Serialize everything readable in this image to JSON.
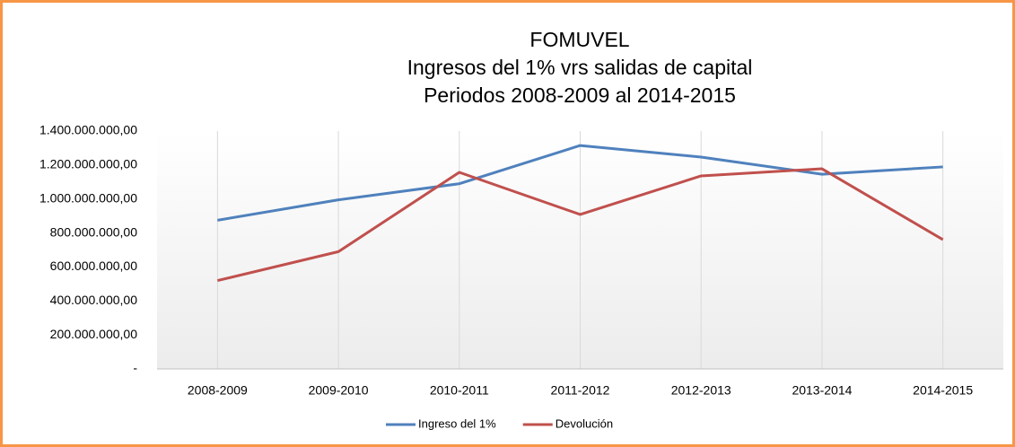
{
  "chart_data": {
    "type": "line",
    "title": [
      "FOMUVEL",
      "Ingresos del 1% vrs salidas de capital",
      "Periodos 2008-2009 al 2014-2015"
    ],
    "categories": [
      "2008-2009",
      "2009-2010",
      "2010-2011",
      "2011-2012",
      "2012-2013",
      "2013-2014",
      "2014-2015"
    ],
    "series": [
      {
        "name": "Ingreso del 1%",
        "color": "#4f81bd",
        "values": [
          875000000,
          995000000,
          1090000000,
          1315000000,
          1247000000,
          1146000000,
          1189000000
        ]
      },
      {
        "name": "Devolución",
        "color": "#c0504d",
        "values": [
          520000000,
          690000000,
          1157000000,
          909000000,
          1136000000,
          1178000000,
          761000000
        ]
      }
    ],
    "ylim": [
      0,
      1400000000
    ],
    "yticks": [
      {
        "value": 0,
        "label": "-"
      },
      {
        "value": 200000000,
        "label": "200.000.000,00"
      },
      {
        "value": 400000000,
        "label": "400.000.000,00"
      },
      {
        "value": 600000000,
        "label": "600.000.000,00"
      },
      {
        "value": 800000000,
        "label": "800.000.000,00"
      },
      {
        "value": 1000000000,
        "label": "1.000.000.000,00"
      },
      {
        "value": 1200000000,
        "label": "1.200.000.000,00"
      },
      {
        "value": 1400000000,
        "label": "1.400.000.000,00"
      }
    ],
    "grid": "x",
    "legend": "bottom"
  }
}
